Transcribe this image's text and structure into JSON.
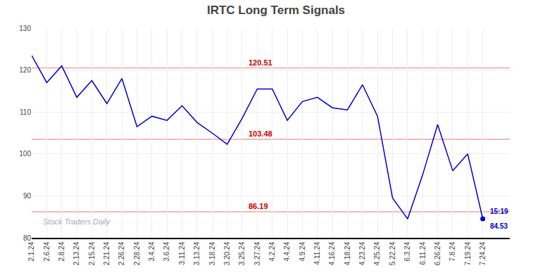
{
  "chart_data": {
    "type": "line",
    "title": "IRTC Long Term Signals",
    "categories": [
      "2.1.24",
      "2.6.24",
      "2.8.24",
      "2.13.24",
      "2.15.24",
      "2.21.24",
      "2.26.24",
      "2.28.24",
      "3.4.24",
      "3.6.24",
      "3.11.24",
      "3.13.24",
      "3.18.24",
      "3.20.24",
      "3.25.24",
      "3.27.24",
      "4.2.24",
      "4.4.24",
      "4.9.24",
      "4.11.24",
      "4.16.24",
      "4.18.24",
      "4.23.24",
      "4.25.24",
      "5.22.24",
      "6.3.24",
      "6.11.24",
      "6.26.24",
      "7.8.24",
      "7.19.24",
      "7.24.24"
    ],
    "values": [
      123.5,
      117.0,
      121.0,
      113.5,
      117.5,
      112.0,
      118.0,
      106.5,
      109.0,
      108.0,
      111.5,
      107.5,
      105.0,
      102.3,
      108.5,
      115.5,
      115.5,
      108.0,
      112.5,
      113.5,
      111.0,
      110.5,
      116.5,
      109.0,
      89.5,
      84.5,
      95.0,
      107.0,
      96.0,
      100.0,
      84.53
    ],
    "color": "#0000cc",
    "hlines": [
      {
        "value": 120.51,
        "label": "120.51",
        "color": "#cc0000"
      },
      {
        "value": 103.48,
        "label": "103.48",
        "color": "#cc0000"
      },
      {
        "value": 86.19,
        "label": "86.19",
        "color": "#cc0000"
      }
    ],
    "annotations": [
      {
        "text": "15:19"
      },
      {
        "text": "84.53"
      }
    ],
    "watermark": "Stock Traders Daily",
    "ylim": [
      80,
      130
    ],
    "yticks": [
      80,
      90,
      100,
      110,
      120,
      130
    ],
    "grid": true
  }
}
